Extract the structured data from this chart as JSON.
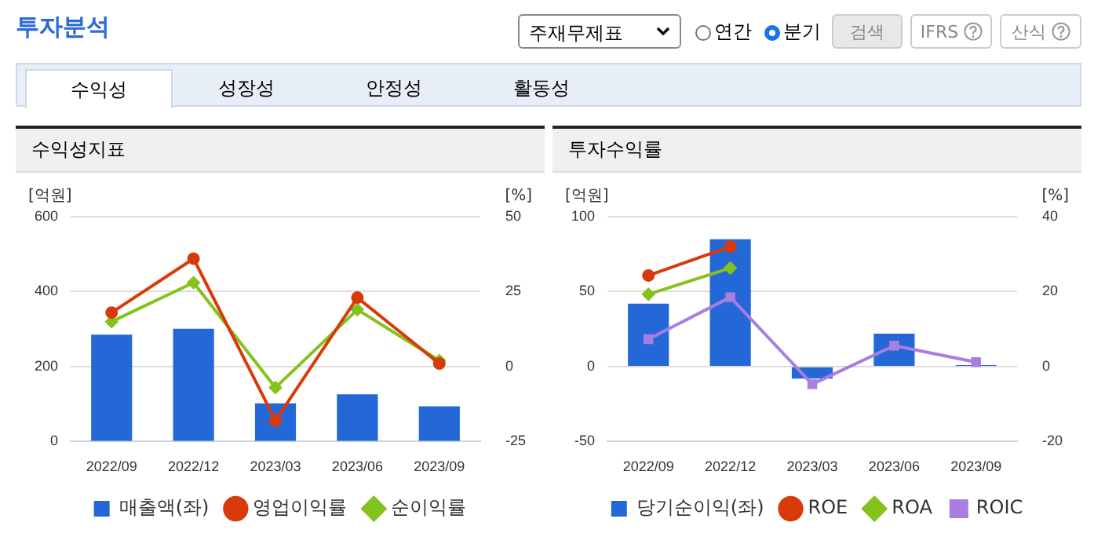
{
  "chart_data": [
    {
      "type": "other",
      "title": "투자분석",
      "annotations": [
        "주재무제표",
        "연간",
        "분기",
        "검색",
        "IFRS",
        "산식",
        "수익성",
        "성장성",
        "안정성",
        "활동성"
      ]
    },
    {
      "type": "bar",
      "title": "수익성지표",
      "ylabel": "[억원]",
      "y2label": "[%]",
      "categories": [
        "2022/09",
        "2022/12",
        "2023/03",
        "2023/06",
        "2023/09"
      ],
      "series": [
        {
          "name": "매출액(좌)",
          "type": "bar",
          "color": "#2468d8",
          "values": [
            285,
            301,
            102,
            126,
            94
          ]
        },
        {
          "name": "영업이익률",
          "type": "line",
          "axis": "y2",
          "marker": "circle",
          "color": "#d83a0c",
          "values": [
            18,
            36,
            -18,
            23,
            1
          ]
        },
        {
          "name": "순이익률",
          "type": "line",
          "axis": "y2",
          "marker": "diamond",
          "color": "#84c21c",
          "values": [
            15,
            28,
            -7,
            19,
            2
          ]
        }
      ],
      "ylim": [
        0,
        600
      ],
      "yticks": [
        0,
        200,
        400,
        600
      ],
      "y2lim": [
        -25,
        50
      ],
      "y2ticks": [
        -25,
        0,
        25,
        50
      ],
      "grid": "y",
      "legend": "bottom"
    },
    {
      "type": "bar",
      "title": "투자수익률",
      "ylabel": "[억원]",
      "y2label": "[%]",
      "categories": [
        "2022/09",
        "2022/12",
        "2023/03",
        "2023/06",
        "2023/09"
      ],
      "series": [
        {
          "name": "당기순이익(좌)",
          "type": "bar",
          "color": "#2468d8",
          "values": [
            42,
            85,
            -8,
            22,
            1
          ]
        },
        {
          "name": "ROE",
          "type": "line",
          "axis": "y2",
          "marker": "circle",
          "color": "#d83a0c",
          "values": [
            24.3,
            32,
            null,
            null,
            null
          ]
        },
        {
          "name": "ROA",
          "type": "line",
          "axis": "y2",
          "marker": "diamond",
          "color": "#84c21c",
          "values": [
            19.3,
            26.3,
            null,
            null,
            null
          ]
        },
        {
          "name": "ROIC",
          "type": "line",
          "axis": "y2",
          "marker": "square",
          "color": "#a87ee0",
          "values": [
            7.3,
            18.5,
            -4.7,
            5.6,
            1.2
          ]
        }
      ],
      "ylim": [
        -50,
        100
      ],
      "yticks": [
        -50,
        0,
        50,
        100
      ],
      "y2lim": [
        -20,
        40
      ],
      "y2ticks": [
        -20,
        0,
        20,
        40
      ],
      "grid": "y",
      "legend": "bottom"
    }
  ]
}
